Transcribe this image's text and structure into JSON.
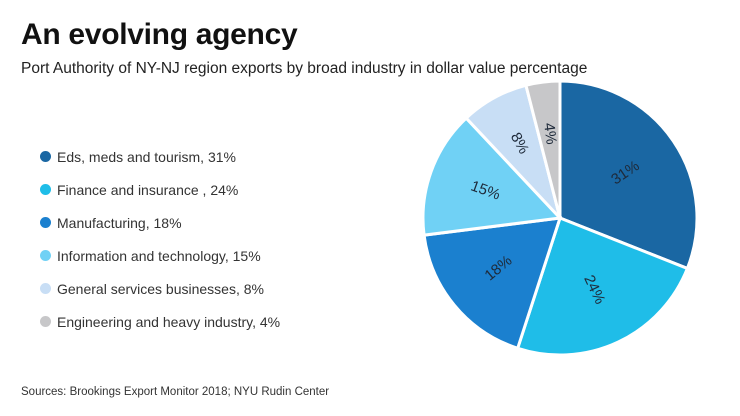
{
  "header": {
    "title": "An evolving agency",
    "subtitle": "Port Authority of NY-NJ region exports by broad industry in dollar value percentage"
  },
  "footer": {
    "source": "Sources: Brookings Export Monitor 2018; NYU Rudin Center"
  },
  "chart_data": {
    "type": "pie",
    "title": "An evolving agency",
    "subtitle": "Port Authority of NY-NJ region exports by broad industry in dollar value percentage",
    "legend_position": "left",
    "start": "top",
    "direction": "clockwise",
    "slices": [
      {
        "name": "Eds, meds and tourism",
        "value": 31,
        "legend_label": "Eds, meds and tourism, 31%",
        "data_label": "31%",
        "color": "#1a67a3"
      },
      {
        "name": "Finance and insurance",
        "value": 24,
        "legend_label": "Finance and insurance , 24%",
        "data_label": "24%",
        "color": "#1fbde8"
      },
      {
        "name": "Manufacturing",
        "value": 18,
        "legend_label": "Manufacturing, 18%",
        "data_label": "18%",
        "color": "#1b80cf"
      },
      {
        "name": "Information and technology",
        "value": 15,
        "legend_label": "Information and technology, 15%",
        "data_label": "15%",
        "color": "#70d1f5"
      },
      {
        "name": "General services businesses",
        "value": 8,
        "legend_label": "General services businesses, 8%",
        "data_label": "8%",
        "color": "#c8def5"
      },
      {
        "name": "Engineering and heavy industry",
        "value": 4,
        "legend_label": "Engineering and heavy industry, 4%",
        "data_label": "4%",
        "color": "#c7c7c9"
      }
    ]
  }
}
